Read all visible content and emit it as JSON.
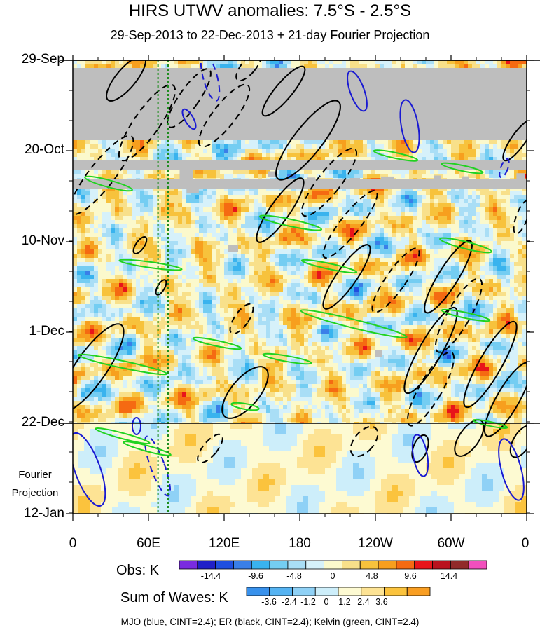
{
  "title": "HIRS UTWV anomalies: 7.5°S - 2.5°S",
  "subtitle": "29-Sep-2013 to 22-Dec-2013 + 21-day Fourier Projection",
  "chart_data": {
    "type": "heatmap",
    "x_axis": {
      "ticks": [
        "0",
        "60E",
        "120E",
        "180",
        "120W",
        "60W",
        "0"
      ],
      "range_deg": [
        0,
        360
      ]
    },
    "y_axis": {
      "ticks": [
        "29-Sep",
        "20-Oct",
        "10-Nov",
        "1-Dec",
        "22-Dec",
        "12-Jan"
      ],
      "direction": "time increases downward"
    },
    "projection_label": [
      "Fourier",
      "Projection"
    ],
    "obs_colorbar": {
      "label": "Obs: K",
      "tick_labels": [
        "-14.4",
        "-9.6",
        "-4.8",
        "0",
        "4.8",
        "9.6",
        "14.4"
      ],
      "colors": [
        "#7a2be0",
        "#2020c8",
        "#1f4fe0",
        "#3a7fe8",
        "#39b3ee",
        "#74cdf2",
        "#a9def6",
        "#d6f1fa",
        "#fbf9cc",
        "#f8e08a",
        "#f7c23c",
        "#f79f1e",
        "#f56a12",
        "#e8141a",
        "#b9121e",
        "#912a2a",
        "#f24fbd"
      ]
    },
    "waves_colorbar": {
      "label": "Sum of Waves: K",
      "tick_labels": [
        "-3.6",
        "-2.4",
        "-1.2",
        "0",
        "1.2",
        "2.4",
        "3.6"
      ],
      "colors": [
        "#3891ec",
        "#55b3f2",
        "#8fd1f6",
        "#cdeefa",
        "#fdfad2",
        "#fde394",
        "#fbc33d",
        "#f99e22"
      ]
    },
    "missing_color": "#bebebe",
    "contours": [
      {
        "name": "MJO",
        "color": "#1a1ad2",
        "cint": 2.4
      },
      {
        "name": "ER",
        "color": "#000000",
        "cint": 2.4
      },
      {
        "name": "Kelvin",
        "color": "#20d220",
        "cint": 2.4
      }
    ],
    "reference_lines": {
      "color": "#1e8c1e",
      "style": "dotted",
      "longitudes_deg": [
        72,
        80
      ]
    }
  },
  "footer": "MJO (blue, CINT=2.4); ER (black, CINT=2.4); Kelvin (green, CINT=2.4)"
}
